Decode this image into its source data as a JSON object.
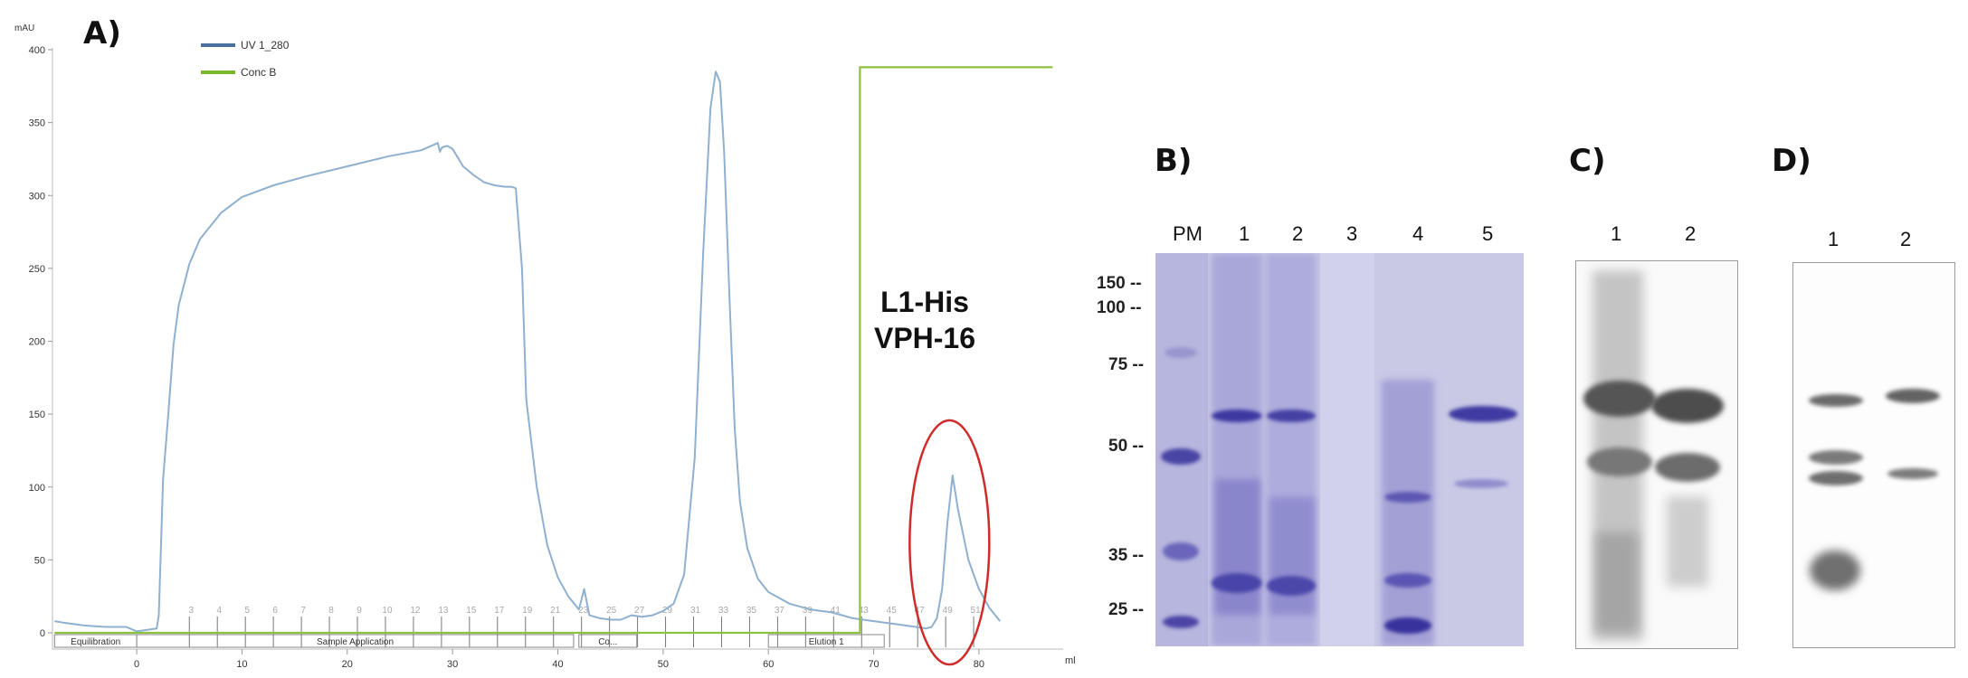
{
  "chart_data": [
    {
      "type": "line",
      "panel_label": "A)",
      "ylabel_unit": "mAU",
      "xlabel_unit": "ml",
      "xlim": [
        -8,
        88
      ],
      "ylim": [
        0,
        400
      ],
      "x_ticks": [
        0,
        10,
        20,
        30,
        40,
        50,
        60,
        70,
        80
      ],
      "y_ticks": [
        0,
        50,
        100,
        150,
        200,
        250,
        300,
        350,
        400
      ],
      "grid": false,
      "legend_position": "top-left",
      "series": [
        {
          "name": "UV 1_280",
          "color": "#8fb0cf",
          "legend_color": "#4a6f9c",
          "x": [
            -7.8,
            -7,
            -5,
            -3,
            -1,
            0,
            1,
            1.9,
            2.1,
            2.5,
            3,
            3.5,
            4,
            5,
            6,
            8,
            10,
            13,
            16,
            20,
            24,
            27,
            28.6,
            28.8,
            29,
            29.5,
            30,
            30.5,
            31,
            32,
            33,
            34,
            35,
            35.6,
            36,
            36.6,
            37,
            38,
            39,
            40,
            41,
            42,
            42.5,
            43,
            44,
            45,
            46,
            47,
            48,
            49,
            50,
            51,
            52,
            53,
            53.8,
            54.5,
            55,
            55.4,
            55.8,
            56.3,
            56.8,
            57.3,
            58,
            59,
            60,
            62,
            64,
            66,
            68,
            70,
            72,
            73,
            74,
            75,
            75.5,
            76,
            76.5,
            77,
            77.5,
            78,
            79,
            80,
            81,
            82
          ],
          "y": [
            8,
            7,
            5,
            4,
            4,
            1,
            2,
            3,
            12,
            105,
            150,
            198,
            225,
            253,
            270,
            288,
            299,
            307,
            313,
            320,
            327,
            331,
            336,
            330,
            333,
            334,
            332,
            326,
            320,
            314,
            309,
            307,
            306,
            306,
            305,
            250,
            160,
            100,
            60,
            38,
            25,
            16,
            30,
            12,
            10,
            9,
            9,
            12,
            11,
            12,
            15,
            20,
            40,
            120,
            260,
            360,
            385,
            378,
            330,
            230,
            140,
            90,
            58,
            37,
            28,
            20,
            16,
            14,
            10,
            8,
            6,
            5,
            4,
            3,
            4,
            10,
            30,
            75,
            108,
            85,
            50,
            30,
            17,
            8
          ]
        },
        {
          "name": "Conc B",
          "color": "#8dc23f",
          "legend_color": "#7ab82a",
          "x": [
            -7.8,
            68.7,
            68.7,
            87
          ],
          "y": [
            0,
            0,
            388,
            388
          ]
        }
      ],
      "fraction_ticks": [
        "3",
        "4",
        "5",
        "6",
        "7",
        "8",
        "9",
        "10",
        "12",
        "13",
        "15",
        "17",
        "19",
        "21",
        "23",
        "25",
        "27",
        "29",
        "31",
        "33",
        "35",
        "37",
        "39",
        "41",
        "43",
        "45",
        "47",
        "49",
        "51"
      ],
      "phases": [
        "Equilibration",
        "Sample Application",
        "Co...",
        "Elution 1"
      ],
      "annotation": [
        "L1-His",
        "VPH-16"
      ]
    }
  ],
  "panel_b": {
    "label": "B)",
    "lanes": [
      "PM",
      "1",
      "2",
      "3",
      "4",
      "5"
    ],
    "markers": [
      "150",
      "100",
      "75",
      "50",
      "35",
      "25"
    ]
  },
  "panel_c": {
    "label": "C)",
    "lanes": [
      "1",
      "2"
    ]
  },
  "panel_d": {
    "label": "D)",
    "lanes": [
      "1",
      "2"
    ]
  }
}
